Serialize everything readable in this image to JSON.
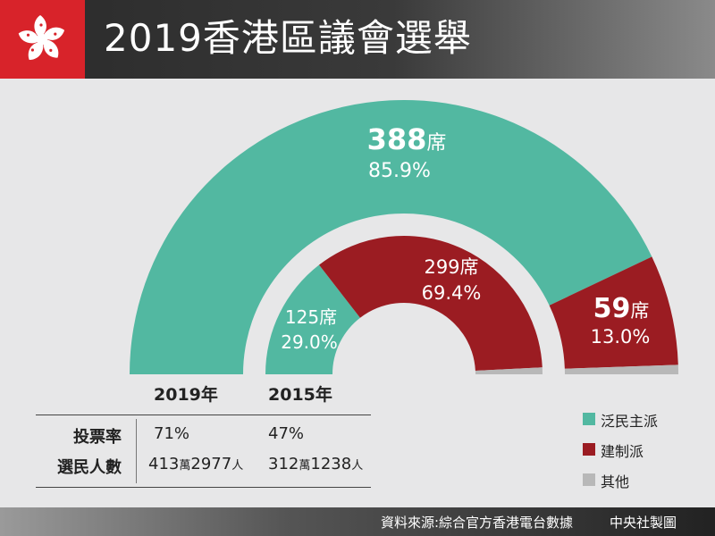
{
  "header": {
    "title": "2019香港區議會選舉"
  },
  "colors": {
    "pan_democratic": "#52b8a1",
    "pro_establishment": "#9b1c22",
    "others": "#b8b8b8",
    "flag_red": "#d8232a"
  },
  "legend": [
    {
      "label": "泛民主派",
      "color": "#52b8a1"
    },
    {
      "label": "建制派",
      "color": "#9b1c22"
    },
    {
      "label": "其他",
      "color": "#b8b8b8"
    }
  ],
  "chart_data": {
    "type": "pie",
    "rings": [
      {
        "year_label": "2019年",
        "slices": [
          {
            "name": "泛民主派",
            "seats_label": "388席",
            "seats_num": "388",
            "unit": "席",
            "percent": 85.9,
            "percent_label": "85.9%"
          },
          {
            "name": "建制派",
            "seats_label": "59席",
            "seats_num": "59",
            "unit": "席",
            "percent": 13.0,
            "percent_label": "13.0%"
          },
          {
            "name": "其他",
            "percent": 1.1
          }
        ]
      },
      {
        "year_label": "2015年",
        "slices": [
          {
            "name": "泛民主派",
            "seats_label": "125席",
            "percent": 29.0,
            "percent_label": "29.0%"
          },
          {
            "name": "建制派",
            "seats_label": "299席",
            "percent": 69.4,
            "percent_label": "69.4%"
          },
          {
            "name": "其他",
            "percent": 1.6
          }
        ]
      }
    ]
  },
  "stats": {
    "rows": [
      {
        "label": "投票率",
        "v2019": "71%",
        "v2015": "47%"
      },
      {
        "label": "選民人數",
        "v2019_a": "413",
        "v2019_b": "萬",
        "v2019_c": "2977",
        "v2019_d": "人",
        "v2015_a": "312",
        "v2015_b": "萬",
        "v2015_c": "1238",
        "v2015_d": "人"
      }
    ]
  },
  "footer": {
    "source": "資料來源:綜合官方香港電台數據",
    "credit": "中央社製圖"
  }
}
